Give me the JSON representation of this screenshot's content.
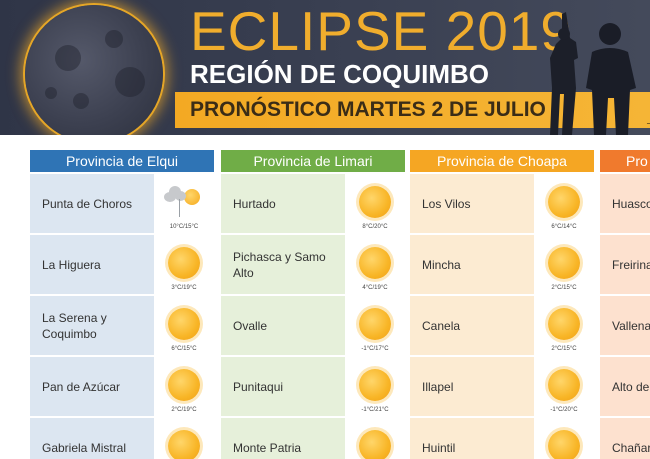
{
  "banner": {
    "title": "ECLIPSE 2019",
    "region": "REGIÓN DE COQUIMBO",
    "forecast": "PRONÓSTICO MARTES 2 DE JULIO",
    "colors": {
      "accent": "#f0ad2d",
      "background": "#2f3547"
    }
  },
  "provinces": [
    {
      "name": "Provincia de Elqui",
      "header_color": "#2f74b5",
      "row_color": "#dce6f1",
      "cities": [
        {
          "name": "Punta de Choros",
          "temp": "10°C/15°C",
          "icon": "partly-cloudy-icon"
        },
        {
          "name": "La Higuera",
          "temp": "3°C/19°C",
          "icon": "sun-icon"
        },
        {
          "name": "La Serena y Coquimbo",
          "temp": "6°C/15°C",
          "icon": "sun-icon"
        },
        {
          "name": "Pan de Azúcar",
          "temp": "2°C/19°C",
          "icon": "sun-icon"
        },
        {
          "name": "Gabriela Mistral",
          "temp": "",
          "icon": "sun-icon"
        }
      ]
    },
    {
      "name": "Provincia de Limari",
      "header_color": "#70ad47",
      "row_color": "#e6f0da",
      "cities": [
        {
          "name": "Hurtado",
          "temp": "8°C/20°C",
          "icon": "sun-icon"
        },
        {
          "name": "Pichasca y Samo Alto",
          "temp": "4°C/19°C",
          "icon": "sun-icon"
        },
        {
          "name": "Ovalle",
          "temp": "-1°C/17°C",
          "icon": "sun-icon"
        },
        {
          "name": "Punitaqui",
          "temp": "-1°C/21°C",
          "icon": "sun-icon"
        },
        {
          "name": "Monte Patria",
          "temp": "",
          "icon": "sun-icon"
        }
      ]
    },
    {
      "name": "Provincia de Choapa",
      "header_color": "#f5a623",
      "row_color": "#fcebd2",
      "cities": [
        {
          "name": "Los Vilos",
          "temp": "6°C/14°C",
          "icon": "sun-icon"
        },
        {
          "name": "Mincha",
          "temp": "2°C/15°C",
          "icon": "sun-icon"
        },
        {
          "name": "Canela",
          "temp": "2°C/15°C",
          "icon": "sun-icon"
        },
        {
          "name": "Illapel",
          "temp": "-1°C/20°C",
          "icon": "sun-icon"
        },
        {
          "name": "Huintil",
          "temp": "",
          "icon": "sun-icon"
        }
      ]
    },
    {
      "name": "Pro",
      "header_color": "#f07a2d",
      "row_color": "#fde1cf",
      "cities": [
        {
          "name": "Huasco",
          "temp": "",
          "icon": ""
        },
        {
          "name": "Freirina",
          "temp": "",
          "icon": ""
        },
        {
          "name": "Vallena",
          "temp": "",
          "icon": ""
        },
        {
          "name": "Alto de",
          "temp": "",
          "icon": ""
        },
        {
          "name": "Chañar Aceitun",
          "temp": "",
          "icon": ""
        }
      ]
    }
  ]
}
